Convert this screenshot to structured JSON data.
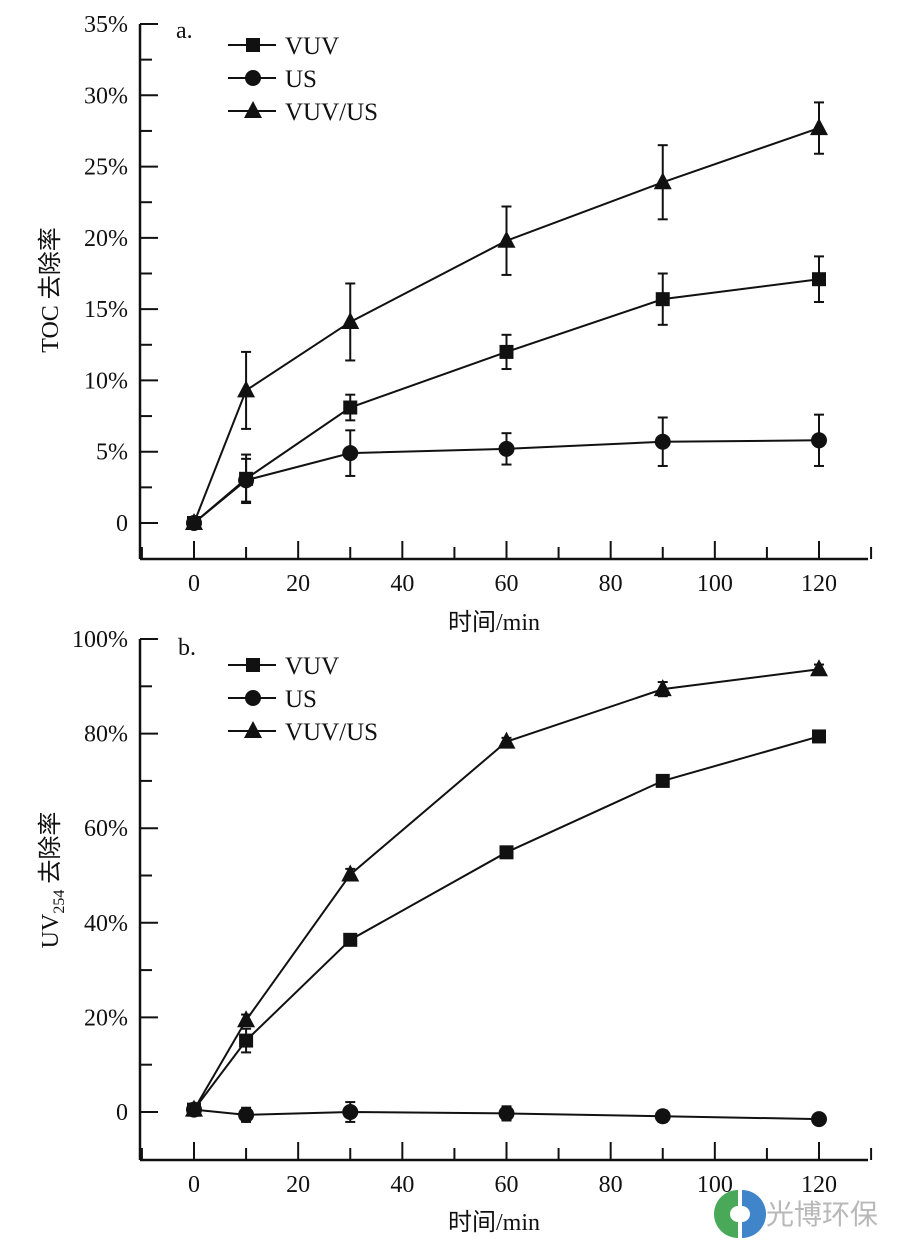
{
  "chart_data": [
    {
      "type": "line",
      "panel_label": "a.",
      "title": "",
      "xlabel": "时间/min",
      "ylabel": "TOC 去除率",
      "xlim": [
        -10,
        130
      ],
      "ylim": [
        -2.5,
        35
      ],
      "x_ticks": [
        0,
        20,
        40,
        60,
        80,
        100,
        120
      ],
      "x_tick_labels": [
        "0",
        "20",
        "40",
        "60",
        "80",
        "100",
        "120"
      ],
      "y_ticks": [
        0,
        5,
        10,
        15,
        20,
        25,
        30,
        35
      ],
      "y_tick_labels": [
        "0",
        "5%",
        "10%",
        "15%",
        "20%",
        "25%",
        "30%",
        "35%"
      ],
      "grid": false,
      "legend_position": "top-left",
      "x": [
        0,
        10,
        30,
        60,
        90,
        120
      ],
      "series": [
        {
          "name": "VUV",
          "marker": "square",
          "values": [
            0,
            3.1,
            8.1,
            12.0,
            15.7,
            17.1
          ],
          "errors": [
            0,
            1.7,
            0.9,
            1.2,
            1.8,
            1.6
          ]
        },
        {
          "name": "US",
          "marker": "circle",
          "values": [
            0,
            3.0,
            4.9,
            5.2,
            5.7,
            5.8
          ],
          "errors": [
            0,
            1.5,
            1.6,
            1.1,
            1.7,
            1.8
          ]
        },
        {
          "name": "VUV/US",
          "marker": "triangle",
          "values": [
            0,
            9.3,
            14.1,
            19.8,
            23.9,
            27.7
          ],
          "errors": [
            0,
            2.7,
            2.7,
            2.4,
            2.6,
            1.8
          ]
        }
      ]
    },
    {
      "type": "line",
      "panel_label": "b.",
      "title": "",
      "xlabel": "时间/min",
      "ylabel": "UV254 去除率",
      "ylabel_main": "UV",
      "ylabel_sub": "254",
      "ylabel_suffix": " 去除率",
      "xlim": [
        -10,
        130
      ],
      "ylim": [
        -10,
        100
      ],
      "x_ticks": [
        0,
        20,
        40,
        60,
        80,
        100,
        120
      ],
      "x_tick_labels": [
        "0",
        "20",
        "40",
        "60",
        "80",
        "100",
        "120"
      ],
      "y_ticks": [
        0,
        20,
        40,
        60,
        80,
        100
      ],
      "y_tick_labels": [
        "0",
        "20%",
        "40%",
        "60%",
        "80%",
        "100%"
      ],
      "grid": false,
      "legend_position": "top-left",
      "x": [
        0,
        10,
        30,
        60,
        90,
        120
      ],
      "series": [
        {
          "name": "VUV",
          "marker": "square",
          "values": [
            0.5,
            15.1,
            36.4,
            54.9,
            70.0,
            79.4
          ],
          "errors": [
            0,
            2.5,
            0.6,
            0.6,
            0.6,
            0.8
          ]
        },
        {
          "name": "US",
          "marker": "circle",
          "values": [
            0.5,
            -0.6,
            0,
            -0.3,
            -0.9,
            -1.5
          ],
          "errors": [
            0,
            1.5,
            2.1,
            1.5,
            1.2,
            1.0
          ]
        },
        {
          "name": "VUV/US",
          "marker": "triangle",
          "values": [
            0.5,
            19.4,
            50.2,
            78.3,
            89.4,
            93.6
          ],
          "errors": [
            0,
            1.2,
            1.2,
            0.8,
            1.5,
            1.0
          ]
        }
      ]
    }
  ],
  "watermark": {
    "text": "光博环保",
    "logo_colors": [
      "#2a9a3c",
      "#1f6fc0"
    ]
  }
}
